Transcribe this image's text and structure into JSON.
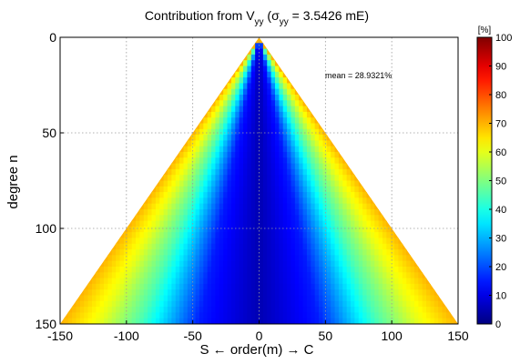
{
  "chart_data": {
    "type": "heatmap",
    "title": {
      "prefix": "Contribution from V",
      "sub1": "yy",
      "mid": " (",
      "sigma": "σ",
      "sub2": "yy",
      "suffix": " = 3.5426 mE)"
    },
    "xlabel": "S  ←  order(m)  → C",
    "ylabel": "degree n",
    "annotation": "mean = 28.9321%",
    "xlim": [
      -150,
      150
    ],
    "ylim": [
      0,
      150
    ],
    "y_reversed": true,
    "xticks": [
      -150,
      -100,
      -50,
      0,
      50,
      100,
      150
    ],
    "yticks": [
      0,
      50,
      100,
      150
    ],
    "grid": true,
    "colorbar": {
      "label": "[%]",
      "range": [
        0,
        100
      ],
      "ticks": [
        0,
        10,
        20,
        30,
        40,
        50,
        60,
        70,
        80,
        90,
        100
      ],
      "colormap": "jet"
    },
    "value_model": {
      "description": "contribution increases with |m|/n ratio from center (≈0%) toward triangle edges (≈65–75%)",
      "profile_ratio": [
        0,
        0.3,
        0.6,
        0.8,
        1.0
      ],
      "profile_percent": [
        5,
        15,
        45,
        60,
        70
      ]
    }
  }
}
